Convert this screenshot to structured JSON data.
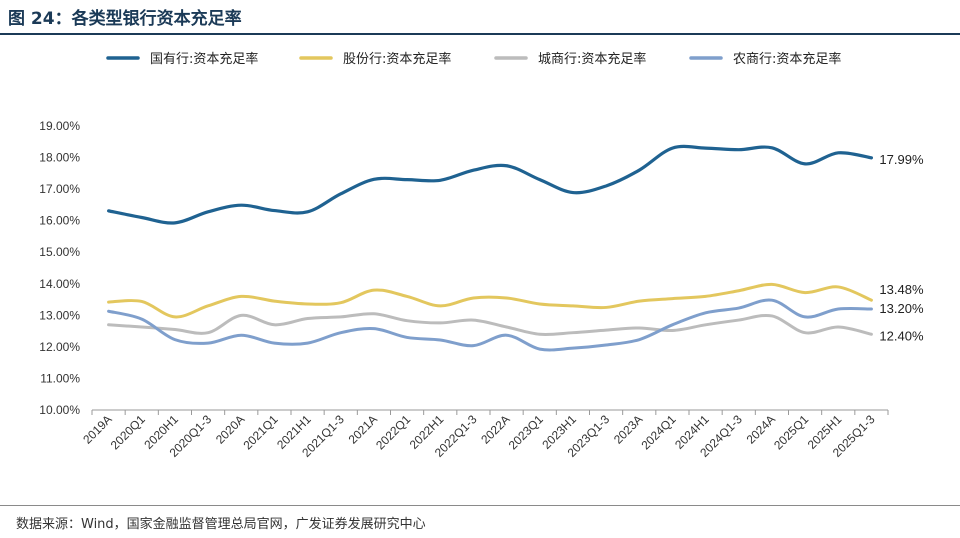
{
  "header": {
    "title": "图 24：各类型银行资本充足率"
  },
  "footer": {
    "source": "数据来源：Wind，国家金融监督管理总局官网，广发证券发展研究中心"
  },
  "chart_data": {
    "type": "line",
    "title": "",
    "xlabel": "",
    "ylabel": "",
    "ylim": [
      10,
      19
    ],
    "y_ticks": [
      10,
      11,
      12,
      13,
      14,
      15,
      16,
      17,
      18,
      19
    ],
    "y_tick_labels": [
      "10.00%",
      "11.00%",
      "12.00%",
      "13.00%",
      "14.00%",
      "15.00%",
      "16.00%",
      "17.00%",
      "18.00%",
      "19.00%"
    ],
    "categories": [
      "2019A",
      "2020Q1",
      "2020H1",
      "2020Q1-3",
      "2020A",
      "2021Q1",
      "2021H1",
      "2021Q1-3",
      "2021A",
      "2022Q1",
      "2022H1",
      "2022Q1-3",
      "2022A",
      "2023Q1",
      "2023H1",
      "2023Q1-3",
      "2023A",
      "2024Q1",
      "2024H1",
      "2024Q1-3",
      "2024A",
      "2025Q1",
      "2025H1",
      "2025Q1-3"
    ],
    "grid": false,
    "legend_position": "top",
    "series": [
      {
        "name": "国有行:资本充足率",
        "color": "#1f6291",
        "values": [
          16.31,
          16.1,
          15.93,
          16.28,
          16.49,
          16.32,
          16.28,
          16.85,
          17.31,
          17.3,
          17.28,
          17.6,
          17.74,
          17.3,
          16.89,
          17.1,
          17.6,
          18.3,
          18.3,
          18.25,
          18.31,
          17.8,
          18.15,
          17.99
        ],
        "end_label": "17.99%"
      },
      {
        "name": "股份行:资本充足率",
        "color": "#e3c75e",
        "values": [
          13.42,
          13.44,
          12.95,
          13.3,
          13.6,
          13.45,
          13.36,
          13.4,
          13.8,
          13.6,
          13.3,
          13.55,
          13.55,
          13.36,
          13.3,
          13.25,
          13.45,
          13.53,
          13.6,
          13.78,
          13.98,
          13.72,
          13.9,
          13.48
        ],
        "end_label": "13.48%"
      },
      {
        "name": "城商行:资本充足率",
        "color": "#bcbcbc",
        "values": [
          12.7,
          12.63,
          12.55,
          12.45,
          13.0,
          12.7,
          12.9,
          12.95,
          13.05,
          12.83,
          12.76,
          12.85,
          12.63,
          12.4,
          12.45,
          12.53,
          12.6,
          12.52,
          12.7,
          12.85,
          12.98,
          12.45,
          12.63,
          12.4
        ],
        "end_label": "12.40%"
      },
      {
        "name": "农商行:资本充足率",
        "color": "#7f9fcc",
        "values": [
          13.13,
          12.88,
          12.23,
          12.12,
          12.37,
          12.12,
          12.12,
          12.45,
          12.58,
          12.3,
          12.22,
          12.04,
          12.37,
          11.93,
          11.96,
          12.06,
          12.23,
          12.7,
          13.08,
          13.23,
          13.48,
          12.95,
          13.2,
          13.2
        ],
        "end_label": "13.20%"
      }
    ]
  }
}
